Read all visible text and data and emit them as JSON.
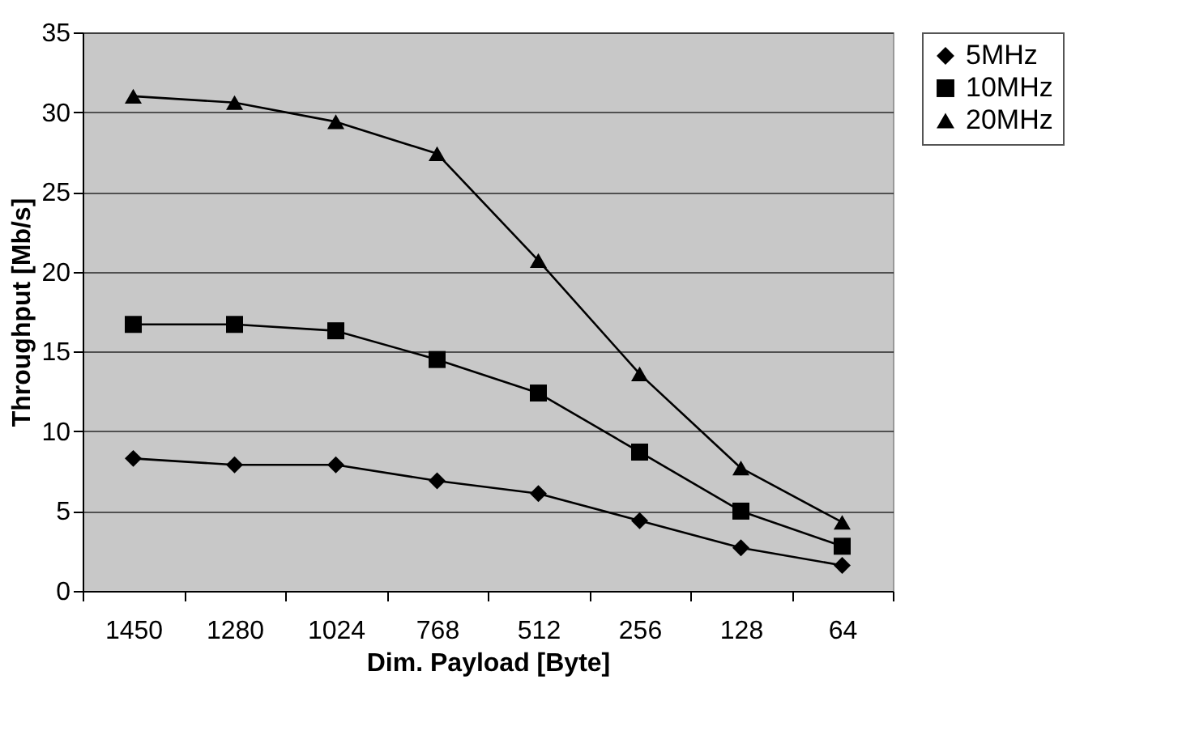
{
  "chart_data": {
    "type": "line",
    "xlabel": "Dim. Payload [Byte]",
    "ylabel": "Throughput [Mb/s]",
    "categories": [
      "1450",
      "1280",
      "1024",
      "768",
      "512",
      "256",
      "128",
      "64"
    ],
    "series": [
      {
        "name": "5MHz",
        "color": "#000000",
        "marker": "diamond",
        "values": [
          8.3,
          7.9,
          7.9,
          6.9,
          6.1,
          4.4,
          2.7,
          1.6
        ]
      },
      {
        "name": "10MHz",
        "color": "#000000",
        "marker": "square",
        "values": [
          16.7,
          16.7,
          16.3,
          14.5,
          12.4,
          8.7,
          5.0,
          2.8
        ]
      },
      {
        "name": "20MHz",
        "color": "#000000",
        "marker": "triangle",
        "values": [
          31.0,
          30.6,
          29.4,
          27.4,
          20.7,
          13.6,
          7.7,
          4.3
        ]
      }
    ],
    "ylim": [
      0,
      35
    ],
    "yticks": [
      0,
      5,
      10,
      15,
      20,
      25,
      30,
      35
    ],
    "grid": "y",
    "legend": "right",
    "line_style": "solid"
  }
}
